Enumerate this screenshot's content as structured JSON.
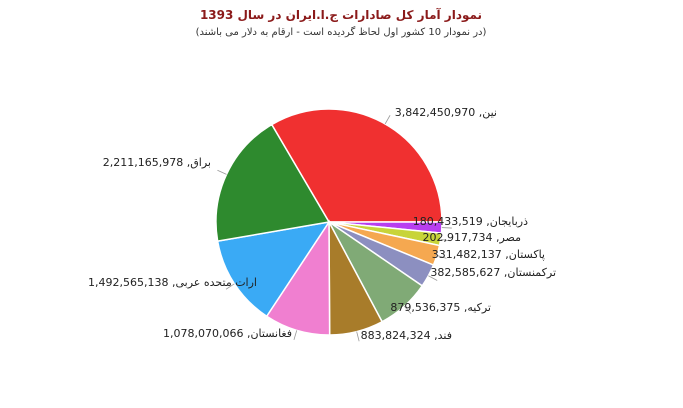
{
  "chart_data": {
    "type": "pie",
    "title": "نمودار آمار کل صادارات ج.ا.ایران در سال 1393",
    "subtitle": "(در نمودار 10 کشور اول لحاظ گردیده است - ارقام به دلار می باشند)",
    "legend": "none",
    "slices": [
      {
        "name": "چین",
        "value": 3842450970,
        "label": "3,842,450,970 ,نین",
        "color": "#f03030"
      },
      {
        "name": "آذربایجان",
        "value": 180433519,
        "label": "180,433,519 ,ذربایجان",
        "color": "#b83ef0"
      },
      {
        "name": "مصر",
        "value": 202917734,
        "label": "202,917,734 ,مصر",
        "color": "#c8d43a"
      },
      {
        "name": "پاکستان",
        "value": 331482137,
        "label": "331,482,137 ,پاکستان",
        "color": "#f5a850"
      },
      {
        "name": "ترکمنستان",
        "value": 382585627,
        "label": "382,585,627 ,ترکمنستان",
        "color": "#8c8fc0"
      },
      {
        "name": "ترکیه",
        "value": 879536375,
        "label": "879,536,375 ,ترکیه",
        "color": "#80aa76"
      },
      {
        "name": "هند",
        "value": 883824324,
        "label": "883,824,324 ,فند",
        "color": "#a87c2a"
      },
      {
        "name": "افغانستان",
        "value": 1078070066,
        "label": "1,078,070,066 ,فغانستان",
        "color": "#f07fd0"
      },
      {
        "name": "امارات متحده عربی",
        "value": 1492565138,
        "label": "1,492,565,138 ,ارات متحده عربی",
        "color": "#3aaaf5"
      },
      {
        "name": "عراق",
        "value": 2211165978,
        "label": "2,211,165,978 ,براق",
        "color": "#2e8a2e"
      }
    ]
  }
}
